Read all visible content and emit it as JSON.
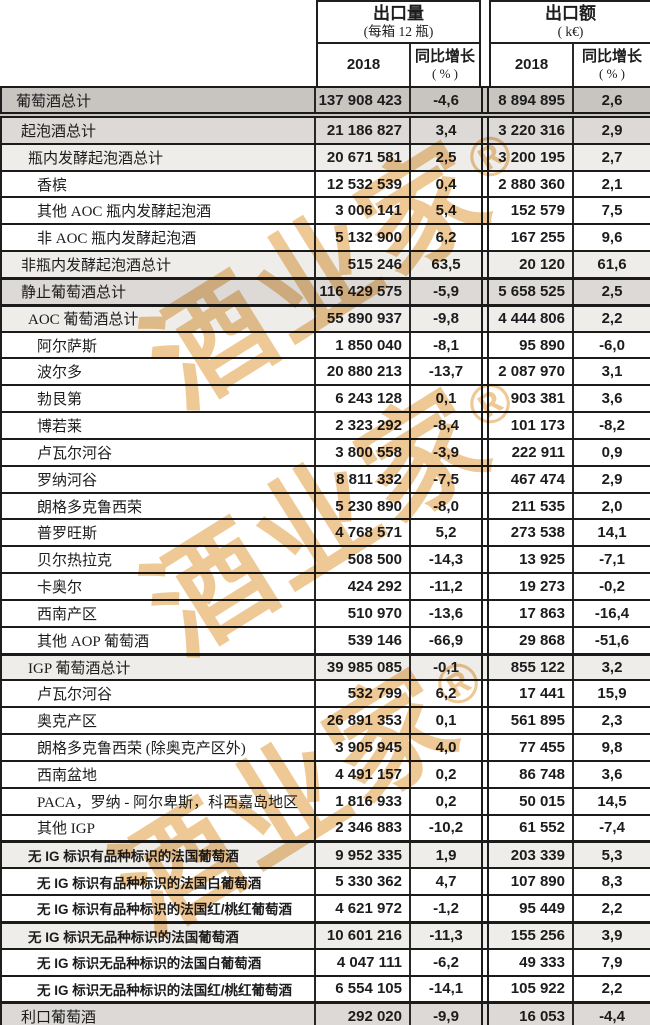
{
  "table": {
    "col_groups": [
      {
        "title": "出口量",
        "subtitle": "(每箱 12 瓶)"
      },
      {
        "title": "出口额",
        "subtitle": "( k€)"
      }
    ],
    "sub_headers": {
      "year": "2018",
      "growth_line1": "同比增长",
      "growth_line2": "( % )"
    },
    "rows": [
      {
        "label": "葡萄酒总计",
        "level": 0,
        "bg": "g1",
        "dbl": true,
        "vol": "137 908 423",
        "vol_pct": "-4,6",
        "val": "8 894 895",
        "val_pct": "2,6"
      },
      {
        "label": "起泡酒总计",
        "level": 1,
        "bg": "g2",
        "vol": "21 186 827",
        "vol_pct": "3,4",
        "val": "3 220 316",
        "val_pct": "2,9"
      },
      {
        "label": "瓶内发酵起泡酒总计",
        "level": 2,
        "bg": "g3",
        "vol": "20 671 581",
        "vol_pct": "2,5",
        "val": "3 200 195",
        "val_pct": "2,7"
      },
      {
        "label": "香槟",
        "level": 3,
        "bg": "w",
        "vol": "12 532 539",
        "vol_pct": "0,4",
        "val": "2 880 360",
        "val_pct": "2,1"
      },
      {
        "label": "其他 AOC 瓶内发酵起泡酒",
        "level": 3,
        "bg": "w",
        "vol": "3 006 141",
        "vol_pct": "5,4",
        "val": "152 579",
        "val_pct": "7,5"
      },
      {
        "label": "非 AOC 瓶内发酵起泡酒",
        "level": 3,
        "bg": "w",
        "vol": "5 132 900",
        "vol_pct": "6,2",
        "val": "167 255",
        "val_pct": "9,6"
      },
      {
        "label": "非瓶内发酵起泡酒总计",
        "level": 1,
        "bg": "g3",
        "vol": "515 246",
        "vol_pct": "63,5",
        "val": "20 120",
        "val_pct": "61,6"
      },
      {
        "label": "静止葡萄酒总计",
        "level": 1,
        "bg": "g2",
        "sep": true,
        "vol": "116 429 575",
        "vol_pct": "-5,9",
        "val": "5 658 525",
        "val_pct": "2,5"
      },
      {
        "label": "AOC 葡萄酒总计",
        "level": 2,
        "bg": "g3",
        "sep": true,
        "vol": "55 890 937",
        "vol_pct": "-9,8",
        "val": "4 444 806",
        "val_pct": "2,2"
      },
      {
        "label": "阿尔萨斯",
        "level": 3,
        "bg": "w",
        "vol": "1 850 040",
        "vol_pct": "-8,1",
        "val": "95 890",
        "val_pct": "-6,0"
      },
      {
        "label": "波尔多",
        "level": 3,
        "bg": "w",
        "vol": "20 880 213",
        "vol_pct": "-13,7",
        "val": "2 087 970",
        "val_pct": "3,1"
      },
      {
        "label": "勃艮第",
        "level": 3,
        "bg": "w",
        "vol": "6 243 128",
        "vol_pct": "0,1",
        "val": "903 381",
        "val_pct": "3,6"
      },
      {
        "label": "博若莱",
        "level": 3,
        "bg": "w",
        "vol": "2 323 292",
        "vol_pct": "-8,4",
        "val": "101 173",
        "val_pct": "-8,2"
      },
      {
        "label": "卢瓦尔河谷",
        "level": 3,
        "bg": "w",
        "vol": "3 800 558",
        "vol_pct": "-3,9",
        "val": "222 911",
        "val_pct": "0,9"
      },
      {
        "label": "罗纳河谷",
        "level": 3,
        "bg": "w",
        "vol": "8 811 332",
        "vol_pct": "-7,5",
        "val": "467 474",
        "val_pct": "2,9"
      },
      {
        "label": "朗格多克鲁西荣",
        "level": 3,
        "bg": "w",
        "vol": "5 230 890",
        "vol_pct": "-8,0",
        "val": "211 535",
        "val_pct": "2,0"
      },
      {
        "label": "普罗旺斯",
        "level": 3,
        "bg": "w",
        "vol": "4 768 571",
        "vol_pct": "5,2",
        "val": "273 538",
        "val_pct": "14,1"
      },
      {
        "label": "贝尔热拉克",
        "level": 3,
        "bg": "w",
        "vol": "508 500",
        "vol_pct": "-14,3",
        "val": "13 925",
        "val_pct": "-7,1"
      },
      {
        "label": "卡奥尔",
        "level": 3,
        "bg": "w",
        "vol": "424 292",
        "vol_pct": "-11,2",
        "val": "19 273",
        "val_pct": "-0,2"
      },
      {
        "label": "西南产区",
        "level": 3,
        "bg": "w",
        "vol": "510 970",
        "vol_pct": "-13,6",
        "val": "17 863",
        "val_pct": "-16,4"
      },
      {
        "label": "其他 AOP 葡萄酒",
        "level": 3,
        "bg": "w",
        "vol": "539 146",
        "vol_pct": "-66,9",
        "val": "29 868",
        "val_pct": "-51,6"
      },
      {
        "label": "IGP 葡萄酒总计",
        "level": 2,
        "bg": "g3",
        "sep": true,
        "vol": "39 985 085",
        "vol_pct": "-0,1",
        "val": "855 122",
        "val_pct": "3,2"
      },
      {
        "label": "卢瓦尔河谷",
        "level": 3,
        "bg": "w",
        "vol": "532 799",
        "vol_pct": "6,2",
        "val": "17 441",
        "val_pct": "15,9"
      },
      {
        "label": "奥克产区",
        "level": 3,
        "bg": "w",
        "vol": "26 891 353",
        "vol_pct": "0,1",
        "val": "561 895",
        "val_pct": "2,3"
      },
      {
        "label": "朗格多克鲁西荣 (除奥克产区外)",
        "level": 3,
        "bg": "w",
        "vol": "3 905 945",
        "vol_pct": "4,0",
        "val": "77 455",
        "val_pct": "9,8"
      },
      {
        "label": "西南盆地",
        "level": 3,
        "bg": "w",
        "vol": "4 491 157",
        "vol_pct": "0,2",
        "val": "86 748",
        "val_pct": "3,6"
      },
      {
        "label": "PACA，罗纳 - 阿尔卑斯，科西嘉岛地区",
        "level": 3,
        "bg": "w",
        "vol": "1 816 933",
        "vol_pct": "0,2",
        "val": "50 015",
        "val_pct": "14,5"
      },
      {
        "label": "其他 IGP",
        "level": 3,
        "bg": "w",
        "vol": "2 346 883",
        "vol_pct": "-10,2",
        "val": "61 552",
        "val_pct": "-7,4"
      },
      {
        "label": "无 IG 标识有品种标识的法国葡萄酒",
        "level": 2,
        "bg": "g3",
        "bold": true,
        "sep": true,
        "vol": "9 952 335",
        "vol_pct": "1,9",
        "val": "203 339",
        "val_pct": "5,3"
      },
      {
        "label": "无 IG 标识有品种标识的法国白葡萄酒",
        "level": 3,
        "bg": "w",
        "bold": true,
        "vol": "5 330 362",
        "vol_pct": "4,7",
        "val": "107 890",
        "val_pct": "8,3"
      },
      {
        "label": "无 IG 标识有品种标识的法国红/桃红葡萄酒",
        "level": 3,
        "bg": "w",
        "bold": true,
        "vol": "4 621 972",
        "vol_pct": "-1,2",
        "val": "95 449",
        "val_pct": "2,2"
      },
      {
        "label": "无 IG 标识无品种标识的法国葡萄酒",
        "level": 2,
        "bg": "g3",
        "bold": true,
        "sep": true,
        "vol": "10 601 216",
        "vol_pct": "-11,3",
        "val": "155 256",
        "val_pct": "3,9"
      },
      {
        "label": "无 IG 标识无品种标识的法国白葡萄酒",
        "level": 3,
        "bg": "w",
        "bold": true,
        "vol": "4 047 111",
        "vol_pct": "-6,2",
        "val": "49 333",
        "val_pct": "7,9"
      },
      {
        "label": "无 IG 标识无品种标识的法国红/桃红葡萄酒",
        "level": 3,
        "bg": "w",
        "bold": true,
        "vol": "6 554 105",
        "vol_pct": "-14,1",
        "val": "105 922",
        "val_pct": "2,2"
      },
      {
        "label": "利口葡萄酒",
        "level": 1,
        "bg": "g2",
        "sep": true,
        "vol": "292 020",
        "vol_pct": "-9,9",
        "val": "16 053",
        "val_pct": "-4,4"
      }
    ]
  },
  "watermark": {
    "text": "酒业家",
    "reg": "®",
    "color": "#ebbe82"
  }
}
